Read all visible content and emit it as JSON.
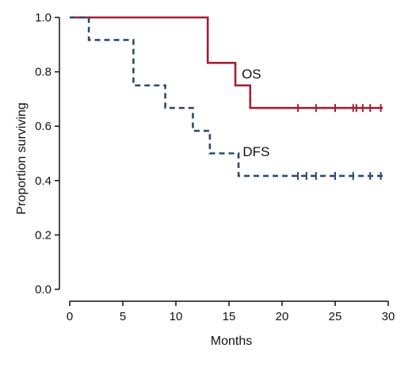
{
  "chart_data": {
    "type": "line",
    "title": "",
    "xlabel": "Months",
    "ylabel": "Proportion surviving",
    "xlim": [
      0,
      30
    ],
    "ylim": [
      0,
      1
    ],
    "xticks": [
      "0",
      "5",
      "10",
      "15",
      "20",
      "25",
      "30"
    ],
    "yticks": [
      "0.0",
      "0.2",
      "0.4",
      "0.6",
      "0.8",
      "1.0"
    ],
    "grid": false,
    "series": [
      {
        "name": "OS",
        "color": "#a31f34",
        "line_style": "solid",
        "steps": [
          [
            0,
            1.0
          ],
          [
            13.0,
            0.833
          ],
          [
            15.6,
            0.75
          ],
          [
            17.0,
            0.667
          ],
          [
            29.5,
            0.667
          ]
        ],
        "censor_x": [
          21.5,
          23.2,
          25.0,
          26.7,
          27.0,
          27.6,
          28.3,
          29.3
        ]
      },
      {
        "name": "DFS",
        "color": "#2e4a6e",
        "line_style": "dashed",
        "steps": [
          [
            0,
            1.0
          ],
          [
            1.8,
            0.917
          ],
          [
            6.0,
            0.75
          ],
          [
            9.0,
            0.667
          ],
          [
            11.6,
            0.583
          ],
          [
            13.2,
            0.5
          ],
          [
            15.9,
            0.417
          ],
          [
            29.5,
            0.417
          ]
        ],
        "censor_x": [
          21.5,
          22.3,
          23.2,
          25.0,
          26.7,
          28.3,
          29.3
        ]
      }
    ]
  }
}
